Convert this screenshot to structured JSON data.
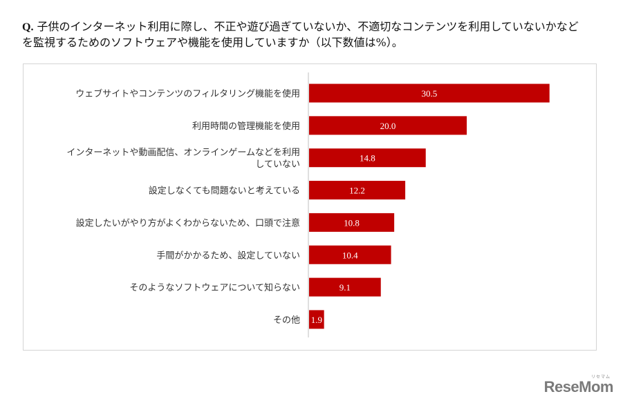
{
  "question": {
    "prefix": "Q.",
    "text": "子供のインターネット利用に際し、不正や遊び過ぎていないか、不適切なコンテンツを利用していないかなどを監視するためのソフトウェアや機能を使用していますか（以下数値は%）。"
  },
  "logo": {
    "text": "ReseMom",
    "sub": "リセマム"
  },
  "colors": {
    "bar": "#c00000",
    "axis": "#bfbfbf",
    "frame": "#d4d4d4"
  },
  "chart_data": {
    "type": "bar",
    "orientation": "horizontal",
    "categories": [
      [
        "ウェブサイトやコンテンツのフィルタリング機能を使用"
      ],
      [
        "利用時間の管理機能を使用"
      ],
      [
        "インターネットや動画配信、オンラインゲームなどを利用",
        "していない"
      ],
      [
        "設定しなくても問題ないと考えている"
      ],
      [
        "設定したいがやり方がよくわからないため、口頭で注意"
      ],
      [
        "手間がかかるため、設定していない"
      ],
      [
        "そのようなソフトウェアについて知らない"
      ],
      [
        "その他"
      ]
    ],
    "values": [
      30.5,
      20.0,
      14.8,
      12.2,
      10.8,
      10.4,
      9.1,
      1.9
    ],
    "data_labels": [
      "30.5",
      "20.0",
      "14.8",
      "12.2",
      "10.8",
      "10.4",
      "9.1",
      "1.9"
    ],
    "unit": "%",
    "xlim": [
      0,
      35
    ],
    "grid": false,
    "legend": "none"
  }
}
